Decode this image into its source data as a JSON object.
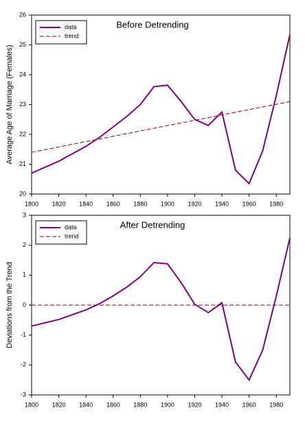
{
  "chart_data": [
    {
      "type": "line",
      "title": "Before Detrending",
      "y_label": "Average Age of Marriage (Females)",
      "xlim": [
        1800,
        1990
      ],
      "xticks": [
        1800,
        1820,
        1840,
        1860,
        1880,
        1900,
        1920,
        1940,
        1960,
        1980
      ],
      "ylim": [
        20,
        26
      ],
      "yticks": [
        20,
        21,
        22,
        23,
        24,
        25,
        26
      ],
      "legend": "upper left",
      "series": [
        {
          "name": "data",
          "color": "#800080",
          "style": "solid",
          "x": [
            1800,
            1810,
            1820,
            1830,
            1840,
            1850,
            1860,
            1870,
            1880,
            1890,
            1900,
            1910,
            1920,
            1930,
            1940,
            1950,
            1960,
            1970,
            1980,
            1990
          ],
          "values": [
            20.7,
            20.9,
            21.1,
            21.35,
            21.6,
            21.9,
            22.25,
            22.6,
            23.0,
            23.6,
            23.65,
            23.1,
            22.5,
            22.3,
            22.75,
            20.8,
            20.35,
            21.45,
            23.3,
            25.35
          ]
        },
        {
          "name": "trend",
          "color": "#800000",
          "style": "dashed",
          "x": [
            1800,
            1990
          ],
          "values": [
            21.4,
            23.1
          ]
        }
      ]
    },
    {
      "type": "line",
      "title": "After Detrending",
      "y_label": "Deviations from the Trend",
      "xlim": [
        1800,
        1990
      ],
      "xticks": [
        1800,
        1820,
        1840,
        1860,
        1880,
        1900,
        1920,
        1940,
        1960,
        1980
      ],
      "ylim": [
        -3,
        3
      ],
      "yticks": [
        -3,
        -2,
        -1,
        0,
        1,
        2,
        3
      ],
      "legend": "upper left",
      "series": [
        {
          "name": "data",
          "color": "#800080",
          "style": "solid",
          "x": [
            1800,
            1810,
            1820,
            1830,
            1840,
            1850,
            1860,
            1870,
            1880,
            1890,
            1900,
            1910,
            1920,
            1930,
            1940,
            1950,
            1960,
            1970,
            1980,
            1990
          ],
          "values": [
            -0.7,
            -0.59,
            -0.48,
            -0.32,
            -0.16,
            0.05,
            0.31,
            0.6,
            0.95,
            1.42,
            1.38,
            0.75,
            0.03,
            -0.25,
            0.08,
            -1.9,
            -2.5,
            -1.5,
            0.3,
            2.25
          ]
        },
        {
          "name": "trend",
          "color": "#800000",
          "style": "dashed",
          "x": [
            1800,
            1990
          ],
          "values": [
            0,
            0
          ]
        }
      ]
    }
  ]
}
